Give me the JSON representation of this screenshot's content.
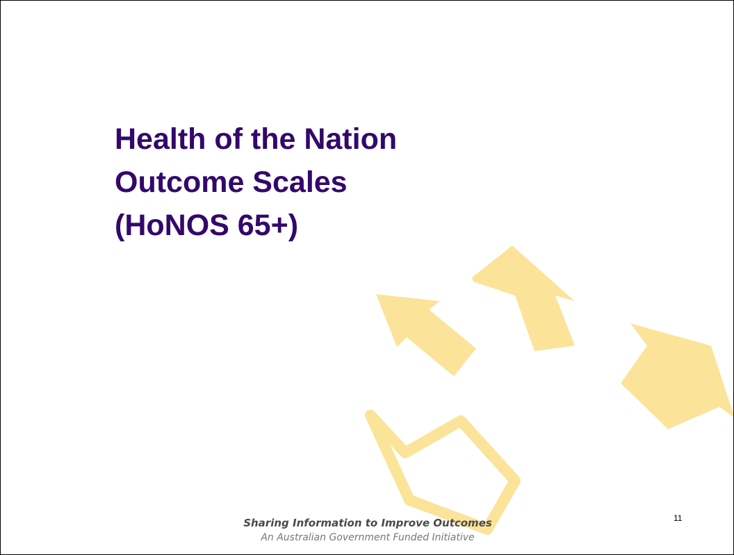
{
  "slide": {
    "title_lines": [
      "Health of the Nation",
      "Outcome Scales",
      "(HoNOS 65+)"
    ],
    "page_number": "11",
    "footer": {
      "tagline": "Sharing Information to Improve Outcomes",
      "subline": "An Australian Government Funded Initiative"
    }
  }
}
